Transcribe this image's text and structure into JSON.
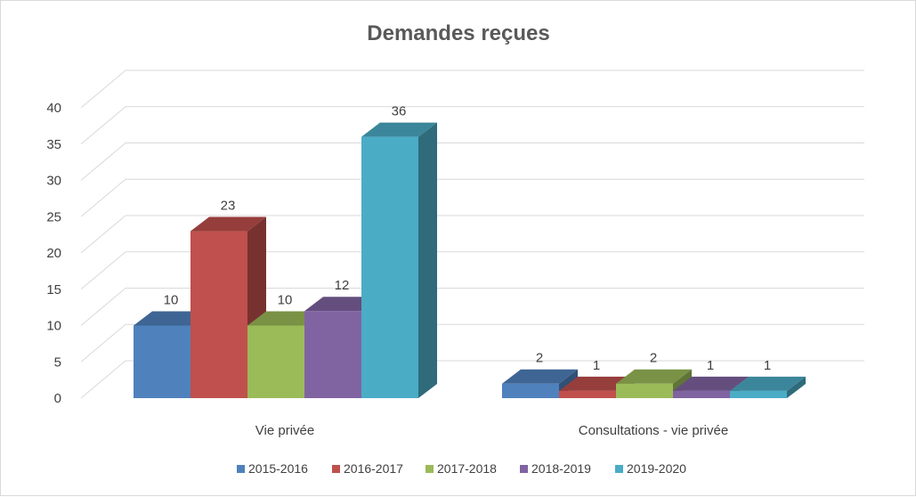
{
  "chart_data": {
    "type": "bar",
    "title": "Demandes reçues",
    "categories": [
      "Vie privée",
      "Consultations - vie privée"
    ],
    "series": [
      {
        "name": "2015-2016",
        "color": "#4f81bd",
        "values": [
          10,
          2
        ]
      },
      {
        "name": "2016-2017",
        "color": "#c0504d",
        "values": [
          23,
          1
        ]
      },
      {
        "name": "2017-2018",
        "color": "#9bbb59",
        "values": [
          10,
          2
        ]
      },
      {
        "name": "2018-2019",
        "color": "#8064a2",
        "values": [
          12,
          1
        ]
      },
      {
        "name": "2019-2020",
        "color": "#4bacc6",
        "values": [
          36,
          1
        ]
      }
    ],
    "ylim": [
      0,
      40
    ],
    "yticks": [
      0,
      5,
      10,
      15,
      20,
      25,
      30,
      35,
      40
    ],
    "grid": true,
    "legend_position": "bottom",
    "data_labels": true,
    "style": "3d-clustered-column"
  }
}
